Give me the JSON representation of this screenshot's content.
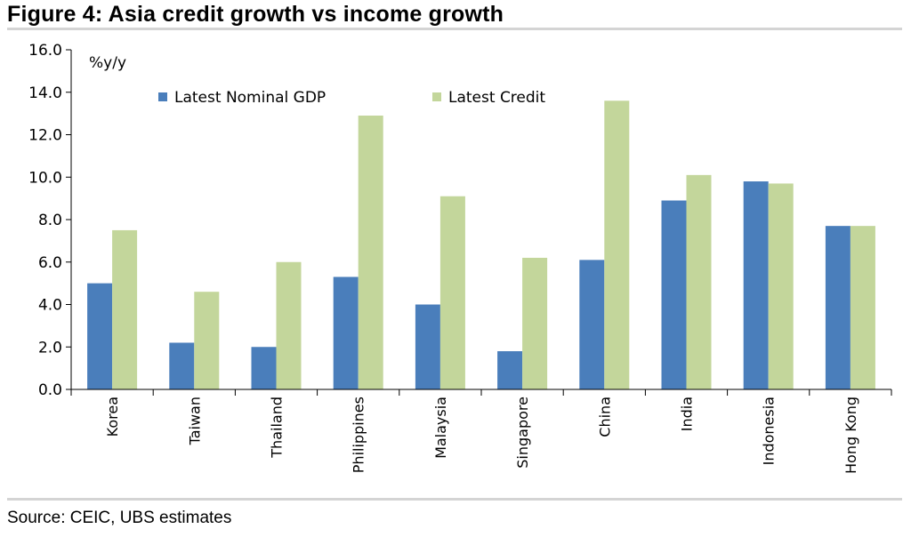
{
  "figure": {
    "title": "Figure 4: Asia credit growth vs income growth",
    "source": "Source: CEIC, UBS estimates"
  },
  "chart_data": {
    "type": "bar",
    "title": "Figure 4: Asia credit growth vs income growth",
    "unit_label": "%y/y",
    "xlabel": "",
    "ylabel": "",
    "ylim": [
      0,
      16
    ],
    "yticks": [
      "0.0",
      "2.0",
      "4.0",
      "6.0",
      "8.0",
      "10.0",
      "12.0",
      "14.0",
      "16.0"
    ],
    "grid": false,
    "legend_position": "top",
    "categories": [
      "Korea",
      "Taiwan",
      "Thailand",
      "Philippines",
      "Malaysia",
      "Singapore",
      "China",
      "India",
      "Indonesia",
      "Hong Kong"
    ],
    "series": [
      {
        "name": "Latest Nominal GDP",
        "color": "#4a7ebb",
        "values": [
          5.0,
          2.2,
          2.0,
          5.3,
          4.0,
          1.8,
          6.1,
          8.9,
          9.8,
          7.7
        ]
      },
      {
        "name": "Latest Credit",
        "color": "#c3d69b",
        "values": [
          7.5,
          4.6,
          6.0,
          12.9,
          9.1,
          6.2,
          13.6,
          10.1,
          9.7,
          7.7
        ]
      }
    ]
  }
}
